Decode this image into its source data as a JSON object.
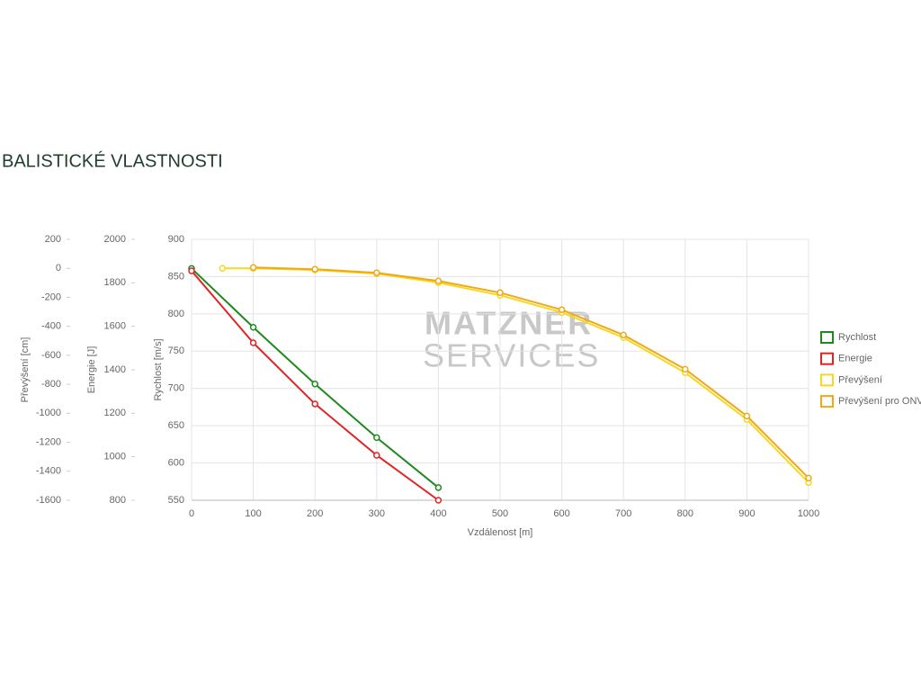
{
  "chart_data": {
    "type": "line",
    "title": "BALISTICKÉ VLASTNOSTI",
    "watermark": [
      "MATZNER",
      "SERVICES"
    ],
    "xlabel": "Vzdálenost [m]",
    "xlim": [
      0,
      1000
    ],
    "xticks": [
      0,
      100,
      200,
      300,
      400,
      500,
      600,
      700,
      800,
      900,
      1000
    ],
    "ylabel": "Rychlost [m/s]",
    "ylim": [
      550,
      900
    ],
    "yticks": [
      550,
      600,
      650,
      700,
      750,
      800,
      850,
      900
    ],
    "y2label": "Energie [J]",
    "y2lim": [
      800,
      2000
    ],
    "y2ticks": [
      800,
      1000,
      1200,
      1400,
      1600,
      1800,
      2000
    ],
    "y3label": "Převýšení [cm]",
    "y3lim": [
      -1600,
      200
    ],
    "y3ticks": [
      -1600,
      -1400,
      -1200,
      -1000,
      -800,
      -600,
      -400,
      -200,
      0,
      200
    ],
    "grid": true,
    "legend": "right",
    "series": [
      {
        "name": "Rychlost",
        "color": "#1e8a1e",
        "axis": "y",
        "x": [
          0,
          100,
          200,
          300,
          400
        ],
        "values": [
          861,
          782,
          706,
          634,
          567
        ]
      },
      {
        "name": "Energie",
        "color": "#e02424",
        "axis": "y2",
        "x": [
          0,
          100,
          200,
          300,
          400
        ],
        "values": [
          1855,
          1524,
          1243,
          1007,
          800
        ]
      },
      {
        "name": "Převýšení",
        "color": "#f5d820",
        "axis": "y3",
        "x": [
          50,
          100,
          200,
          300,
          400,
          500,
          600,
          700,
          800,
          900,
          1000
        ],
        "values": [
          0,
          0,
          -12,
          -37,
          -99,
          -186,
          -304,
          -478,
          -720,
          -1043,
          -1478
        ]
      },
      {
        "name": "Převýšení pro ONV",
        "color": "#f0a818",
        "axis": "y3",
        "x": [
          100,
          200,
          300,
          400,
          500,
          600,
          700,
          800,
          900,
          1000
        ],
        "values": [
          6,
          -6,
          -31,
          -87,
          -168,
          -286,
          -460,
          -696,
          -1019,
          -1447
        ]
      }
    ]
  }
}
